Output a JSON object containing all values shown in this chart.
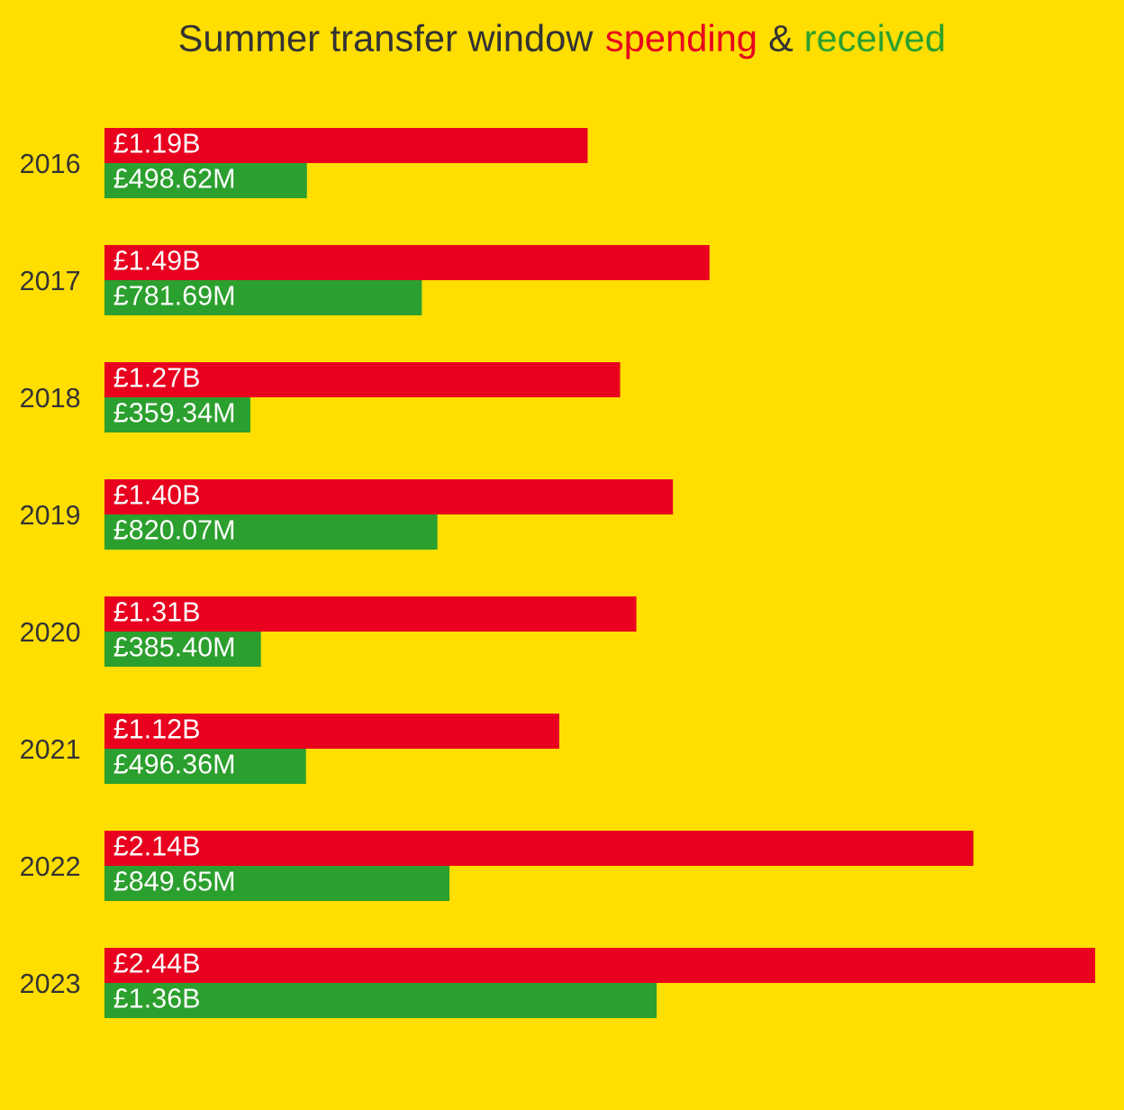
{
  "chart_data": {
    "type": "bar",
    "orientation": "horizontal",
    "title": "Summer transfer window",
    "annotations": [
      "&"
    ],
    "categories": [
      "2016",
      "2017",
      "2018",
      "2019",
      "2020",
      "2021",
      "2022",
      "2023"
    ],
    "series": [
      {
        "name": "spending",
        "color": "#e8001e",
        "values": [
          1190000000,
          1490000000,
          1270000000,
          1400000000,
          1310000000,
          1120000000,
          2140000000,
          2440000000
        ],
        "value_labels": [
          "£1.19B",
          "£1.49B",
          "£1.27B",
          "£1.40B",
          "£1.31B",
          "£1.12B",
          "£2.14B",
          "£2.44B"
        ]
      },
      {
        "name": "received",
        "color": "#2ca02e",
        "values": [
          498620000,
          781690000,
          359340000,
          820070000,
          385400000,
          496360000,
          849650000,
          1360000000
        ],
        "value_labels": [
          "£498.62M",
          "£781.69M",
          "£359.34M",
          "£820.07M",
          "£385.40M",
          "£496.36M",
          "£849.65M",
          "£1.36B"
        ]
      }
    ],
    "tick_labels": "y"
  }
}
